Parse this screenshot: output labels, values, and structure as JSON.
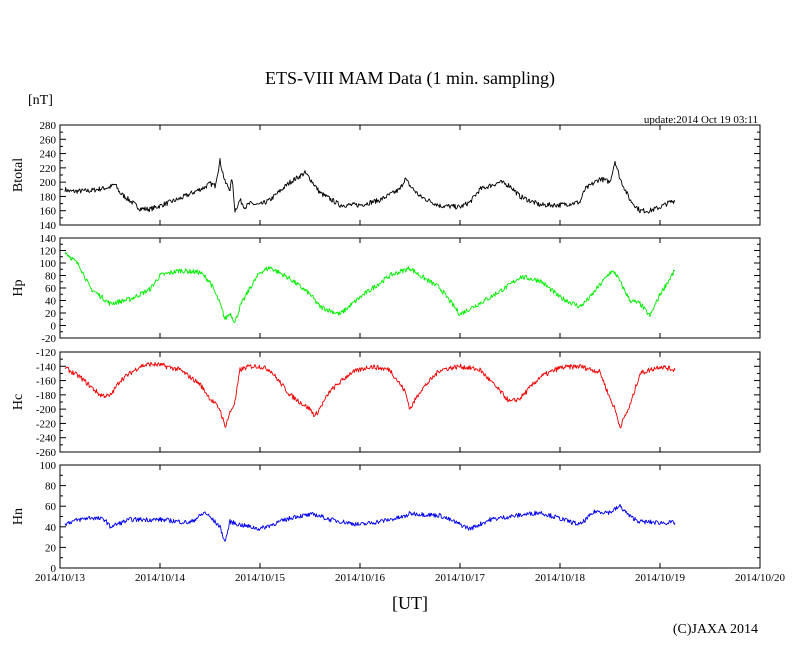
{
  "chart_data": {
    "type": "line",
    "title": "ETS-VIII MAM Data (1 min. sampling)",
    "unit": "[nT]",
    "update": "update:2014 Oct 19 03:11",
    "xlabel": "[UT]",
    "copyright": "(C)JAXA 2014",
    "x_ticks": [
      "2014/10/13",
      "2014/10/14",
      "2014/10/15",
      "2014/10/16",
      "2014/10/17",
      "2014/10/18",
      "2014/10/19",
      "2014/10/20"
    ],
    "xlim_days": [
      0,
      7
    ],
    "grid": false,
    "panels": [
      {
        "ylabel": "Btotal",
        "color": "#000000",
        "noise": 2.5,
        "ylim": [
          140,
          280
        ],
        "yticks": [
          140,
          160,
          180,
          200,
          220,
          240,
          260,
          280
        ],
        "x": [
          0.05,
          0.1,
          0.3,
          0.5,
          0.55,
          0.6,
          0.8,
          0.9,
          1.0,
          1.2,
          1.4,
          1.45,
          1.5,
          1.55,
          1.6,
          1.65,
          1.7,
          1.72,
          1.75,
          1.8,
          1.85,
          1.9,
          2.0,
          2.1,
          2.3,
          2.45,
          2.5,
          2.6,
          2.8,
          3.0,
          3.2,
          3.4,
          3.45,
          3.5,
          3.6,
          3.8,
          4.0,
          4.1,
          4.2,
          4.4,
          4.5,
          4.6,
          4.8,
          5.0,
          5.2,
          5.25,
          5.3,
          5.4,
          5.5,
          5.55,
          5.6,
          5.65,
          5.7,
          5.8,
          5.9,
          6.0,
          6.1,
          6.15
        ],
        "y": [
          190,
          187,
          188,
          193,
          197,
          185,
          163,
          162,
          167,
          177,
          190,
          193,
          198,
          195,
          230,
          200,
          190,
          205,
          160,
          175,
          165,
          170,
          168,
          175,
          200,
          213,
          205,
          185,
          168,
          168,
          175,
          190,
          205,
          195,
          180,
          167,
          165,
          172,
          190,
          200,
          195,
          180,
          168,
          168,
          172,
          190,
          195,
          205,
          200,
          230,
          205,
          190,
          175,
          160,
          160,
          165,
          172,
          174
        ]
      },
      {
        "ylabel": "Hp",
        "color": "#00ee00",
        "noise": 2.5,
        "ylim": [
          -20,
          140
        ],
        "yticks": [
          -20,
          0,
          20,
          40,
          60,
          80,
          100,
          120,
          140
        ],
        "x": [
          0.05,
          0.2,
          0.3,
          0.5,
          0.7,
          0.9,
          1.0,
          1.2,
          1.4,
          1.5,
          1.6,
          1.65,
          1.7,
          1.75,
          1.8,
          1.9,
          2.0,
          2.1,
          2.3,
          2.5,
          2.6,
          2.8,
          3.0,
          3.3,
          3.5,
          3.6,
          3.8,
          4.0,
          4.3,
          4.5,
          4.6,
          4.8,
          5.0,
          5.2,
          5.3,
          5.4,
          5.5,
          5.55,
          5.6,
          5.7,
          5.8,
          5.9,
          6.0,
          6.15
        ],
        "y": [
          118,
          95,
          60,
          35,
          42,
          58,
          80,
          88,
          85,
          70,
          35,
          10,
          20,
          5,
          30,
          60,
          85,
          93,
          75,
          50,
          30,
          18,
          45,
          80,
          92,
          80,
          60,
          18,
          45,
          65,
          78,
          72,
          45,
          30,
          45,
          65,
          85,
          85,
          70,
          40,
          35,
          15,
          50,
          88
        ]
      },
      {
        "ylabel": "Hc",
        "color": "#ee0000",
        "noise": 2.5,
        "ylim": [
          -260,
          -120
        ],
        "yticks": [
          -260,
          -240,
          -220,
          -200,
          -180,
          -160,
          -140,
          -120
        ],
        "x": [
          0.05,
          0.2,
          0.4,
          0.5,
          0.6,
          0.8,
          0.9,
          1.0,
          1.2,
          1.4,
          1.5,
          1.6,
          1.65,
          1.7,
          1.75,
          1.8,
          1.9,
          2.0,
          2.1,
          2.3,
          2.5,
          2.55,
          2.7,
          2.9,
          3.1,
          3.3,
          3.45,
          3.5,
          3.6,
          3.8,
          4.0,
          4.2,
          4.4,
          4.5,
          4.6,
          4.8,
          5.0,
          5.2,
          5.4,
          5.5,
          5.55,
          5.6,
          5.7,
          5.8,
          6.0,
          6.15
        ],
        "y": [
          -142,
          -155,
          -180,
          -182,
          -160,
          -140,
          -137,
          -138,
          -145,
          -165,
          -185,
          -200,
          -225,
          -205,
          -190,
          -145,
          -140,
          -140,
          -145,
          -180,
          -200,
          -210,
          -175,
          -150,
          -140,
          -145,
          -175,
          -200,
          -175,
          -145,
          -140,
          -145,
          -175,
          -190,
          -185,
          -155,
          -142,
          -140,
          -148,
          -185,
          -200,
          -225,
          -195,
          -150,
          -140,
          -145
        ]
      },
      {
        "ylabel": "Hn",
        "color": "#0000ee",
        "noise": 2.2,
        "ylim": [
          0,
          100
        ],
        "yticks": [
          0,
          20,
          40,
          60,
          80,
          100
        ],
        "x": [
          0.05,
          0.15,
          0.3,
          0.45,
          0.5,
          0.7,
          1.0,
          1.3,
          1.45,
          1.6,
          1.65,
          1.7,
          1.8,
          1.9,
          2.0,
          2.2,
          2.35,
          2.55,
          2.7,
          3.0,
          3.3,
          3.45,
          3.5,
          3.8,
          4.1,
          4.3,
          4.5,
          4.8,
          5.0,
          5.2,
          5.35,
          5.5,
          5.6,
          5.7,
          5.8,
          6.0,
          6.15
        ],
        "y": [
          43,
          46,
          49,
          47,
          40,
          47,
          47,
          44,
          54,
          40,
          25,
          45,
          42,
          40,
          38,
          45,
          50,
          52,
          47,
          42,
          47,
          50,
          53,
          51,
          38,
          47,
          50,
          54,
          48,
          42,
          55,
          54,
          60,
          50,
          45,
          44,
          44
        ]
      }
    ]
  }
}
